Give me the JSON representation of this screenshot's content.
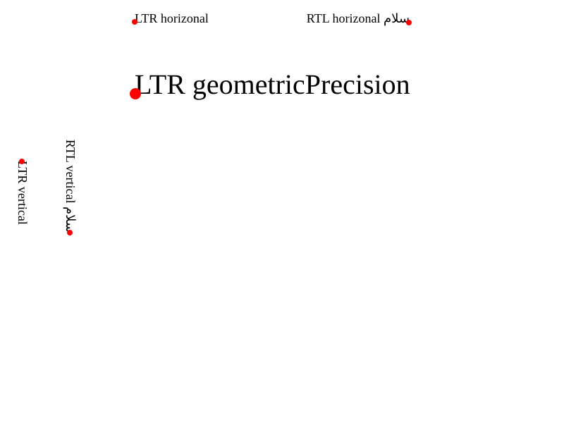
{
  "labels": {
    "ltr_horizontal": "LTR horizonal",
    "rtl_horizontal": "RTL horizonal سلام",
    "ltr_geometric": "LTR geometricPrecision",
    "ltr_vertical": "LTR vertical",
    "rtl_vertical": "RTL vertical سلام"
  },
  "colors": {
    "text": "#000000",
    "anchor_dot": "#ff0000",
    "background": "#ffffff"
  }
}
